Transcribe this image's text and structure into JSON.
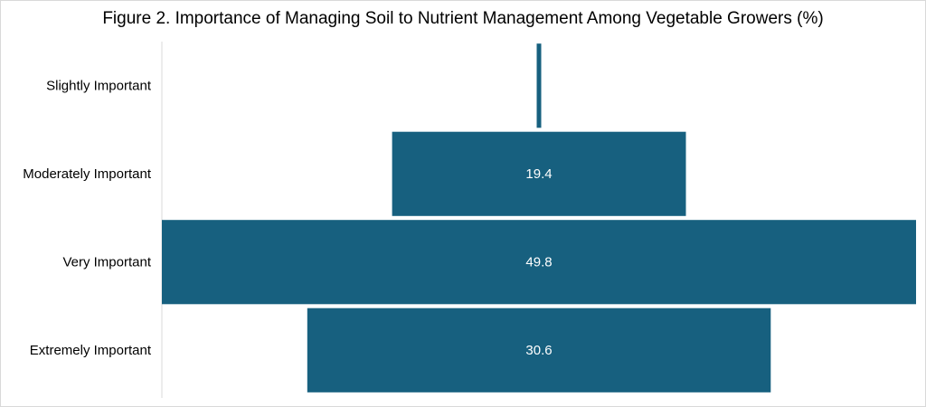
{
  "chart_data": {
    "type": "bar",
    "orientation": "horizontal-funnel",
    "title": "Figure 2. Importance of Managing Soil to Nutrient Management Among Vegetable Growers (%)",
    "categories": [
      "Slightly Important",
      "Moderately Important",
      "Very Important",
      "Extremely Important"
    ],
    "values": [
      0.3,
      19.4,
      49.8,
      30.6
    ],
    "data_labels": [
      "",
      "19.4",
      "49.8",
      "30.6"
    ],
    "xlim": [
      0,
      49.8
    ],
    "grid": false,
    "legend": "none",
    "bar_color": "#17607f"
  }
}
